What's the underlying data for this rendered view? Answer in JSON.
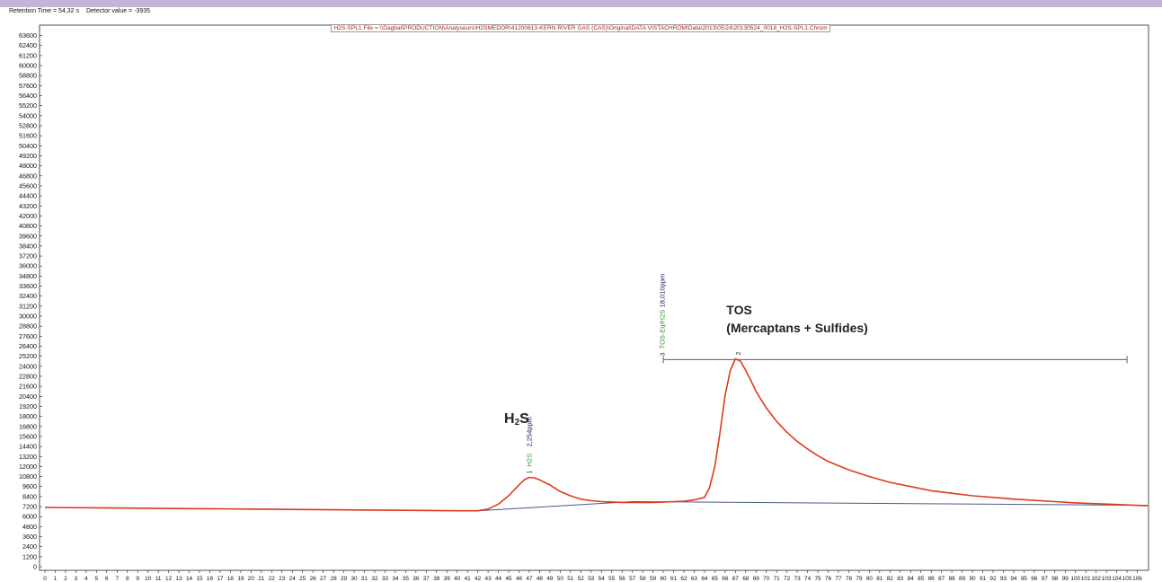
{
  "window": {
    "status_retention": "Retention Time = 54,32 s",
    "status_detector": "Detector value = -3935"
  },
  "colors": {
    "top_band": "#c6b3d8",
    "trace": "#e0391c",
    "baseline": "#4a5a8a",
    "axis": "#222222",
    "file_label": "#b01e1e",
    "compound_name": "#2f8f2f"
  },
  "chart_data": {
    "type": "line",
    "title": "H2S-SPL1 File = \\\\Dagbal\\PRODUCTION\\Analyseurs\\H2SMEDOR\\41200613-KERN RIVER GAS (CAS)\\Original\\DATA VISTACHROM\\Data\\2013\\05\\24\\20130524_0018_H2S-SPL1.Chrom",
    "xlabel": "",
    "ylabel": "",
    "xlim": [
      0,
      107
    ],
    "ylim": [
      0,
      64200
    ],
    "y_ticks": [
      0,
      1200,
      2400,
      3600,
      4800,
      6000,
      7200,
      8400,
      9600,
      10800,
      12000,
      13200,
      14400,
      15600,
      16800,
      18000,
      19200,
      20400,
      21600,
      22800,
      24000,
      25200,
      26400,
      27600,
      28800,
      30000,
      31200,
      32400,
      33600,
      34800,
      36000,
      37200,
      38400,
      39600,
      40800,
      42000,
      43200,
      44400,
      45600,
      46800,
      48000,
      49200,
      50400,
      51600,
      52800,
      54000,
      55200,
      56400,
      57600,
      58800,
      60000,
      61200,
      62400,
      63600
    ],
    "x_ticks": [
      0,
      1,
      2,
      3,
      4,
      5,
      6,
      7,
      8,
      9,
      10,
      11,
      12,
      13,
      14,
      15,
      16,
      17,
      18,
      19,
      20,
      21,
      22,
      23,
      24,
      25,
      26,
      27,
      28,
      29,
      30,
      31,
      32,
      33,
      34,
      35,
      36,
      37,
      38,
      39,
      40,
      41,
      42,
      43,
      44,
      45,
      46,
      47,
      48,
      49,
      50,
      51,
      52,
      53,
      54,
      55,
      56,
      57,
      58,
      59,
      60,
      61,
      62,
      63,
      64,
      65,
      66,
      67,
      68,
      69,
      70,
      71,
      72,
      73,
      74,
      75,
      76,
      77,
      78,
      79,
      80,
      81,
      82,
      83,
      84,
      85,
      86,
      87,
      88,
      89,
      90,
      91,
      92,
      93,
      94,
      95,
      96,
      97,
      98,
      99,
      100,
      101,
      102,
      103,
      104,
      105,
      106
    ],
    "grid": false,
    "series": [
      {
        "x": [
          0,
          5,
          10,
          15,
          20,
          25,
          30,
          35,
          40,
          42,
          43,
          44,
          45,
          46,
          46.5,
          47,
          47.5,
          48,
          49,
          50,
          51,
          52,
          53,
          54,
          55,
          56,
          57,
          58,
          59,
          60,
          61,
          62,
          63,
          64,
          64.5,
          65,
          65.5,
          66,
          66.5,
          67,
          67.5,
          68,
          68.5,
          69,
          70,
          71,
          72,
          73,
          74,
          75,
          76,
          78,
          80,
          82,
          84,
          86,
          88,
          90,
          92,
          94,
          96,
          98,
          100,
          102,
          104,
          106,
          107
        ],
        "y": [
          7100,
          7050,
          7000,
          6950,
          6900,
          6850,
          6800,
          6750,
          6700,
          6700,
          6900,
          7500,
          8500,
          9800,
          10400,
          10700,
          10650,
          10400,
          9800,
          9000,
          8500,
          8100,
          7900,
          7800,
          7750,
          7700,
          7700,
          7700,
          7700,
          7750,
          7800,
          7850,
          8000,
          8300,
          9500,
          12000,
          16000,
          20500,
          23500,
          24900,
          24600,
          23500,
          22300,
          21000,
          19000,
          17400,
          16100,
          15000,
          14100,
          13300,
          12600,
          11600,
          10800,
          10100,
          9600,
          9100,
          8800,
          8500,
          8300,
          8100,
          7950,
          7800,
          7650,
          7550,
          7450,
          7350,
          7300
        ]
      }
    ],
    "baseline_segments": [
      {
        "x": [
          0,
          42,
          57,
          107
        ],
        "y": [
          7100,
          6700,
          7800,
          7350
        ]
      }
    ],
    "integration_window": {
      "x_start": 60,
      "x_end": 105,
      "y": 24800,
      "label": "3"
    },
    "peaks": [
      {
        "number": "1",
        "x": 47,
        "y": 10700,
        "compound": "H2S",
        "value": "2,254ppm"
      },
      {
        "number": "2",
        "x": 67.3,
        "y": 24900,
        "compound": "",
        "value": ""
      }
    ],
    "window_component": {
      "number": "3",
      "compound": "TOS-Eq/H2S",
      "value": "18,010ppm"
    },
    "annotations": [
      {
        "text_main": "H",
        "text_sub": "2",
        "text_rest": "S",
        "x": 45,
        "y": 17200
      },
      {
        "line1": "TOS",
        "line2": "(Mercaptans + Sulfides)",
        "x": 67,
        "y": 28500
      }
    ]
  }
}
